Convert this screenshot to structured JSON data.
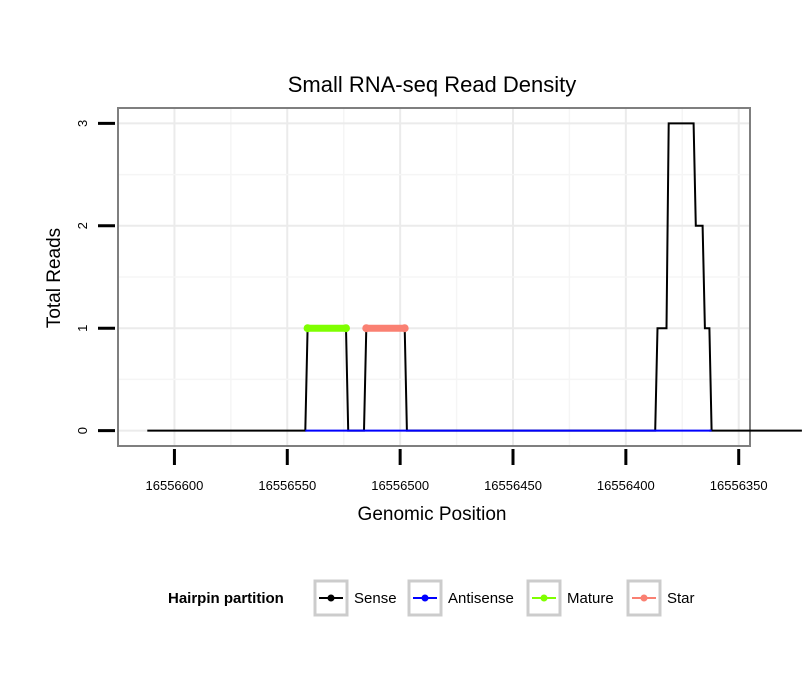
{
  "chart_data": {
    "type": "line",
    "title": "Small RNA-seq Read Density",
    "xlabel": "Genomic Position",
    "ylabel": "Total Reads",
    "x_reversed": true,
    "xlim": [
      16556625,
      16556345
    ],
    "ylim": [
      -0.15,
      3.15
    ],
    "x_ticks": [
      16556600,
      16556550,
      16556500,
      16556450,
      16556400,
      16556350
    ],
    "x_tick_labels": [
      "16556600",
      "16556550",
      "16556500",
      "16556450",
      "16556400",
      "16556350"
    ],
    "y_ticks": [
      0,
      1,
      2,
      3
    ],
    "y_tick_labels": [
      "0",
      "1",
      "2",
      "3"
    ],
    "series": [
      {
        "name": "Sense",
        "color": "#000000",
        "x": [
          16556612,
          16556542,
          16556541,
          16556524,
          16556523,
          16556516,
          16556515,
          16556498,
          16556497,
          16556387,
          16556386,
          16556382,
          16556381,
          16556377,
          16556376,
          16556370,
          16556369,
          16556366,
          16556365,
          16556363,
          16556362,
          16556362,
          16556361,
          16556362,
          16556360,
          16556363,
          16556361,
          16556322
        ],
        "y": [
          0,
          0,
          1,
          1,
          0,
          0,
          1,
          1,
          0,
          0,
          1,
          1,
          3,
          3,
          3,
          3,
          2,
          2,
          1,
          1,
          0,
          0,
          0,
          0,
          0,
          0,
          0,
          0
        ]
      },
      {
        "name": "Antisense",
        "color": "#0000ff",
        "x": [
          16556542,
          16556523,
          16556515,
          16556497,
          16556387,
          16556362
        ],
        "y": [
          0,
          0,
          0,
          0,
          0,
          0
        ]
      },
      {
        "name": "Mature",
        "color": "#7fff00",
        "x": [
          16556541,
          16556524
        ],
        "y": [
          1,
          1
        ]
      },
      {
        "name": "Star",
        "color": "#fa8072",
        "x": [
          16556515,
          16556498
        ],
        "y": [
          1,
          1
        ]
      }
    ],
    "legend": {
      "title": "Hairpin partition",
      "position": "bottom",
      "entries": [
        "Sense",
        "Antisense",
        "Mature",
        "Star"
      ]
    }
  }
}
